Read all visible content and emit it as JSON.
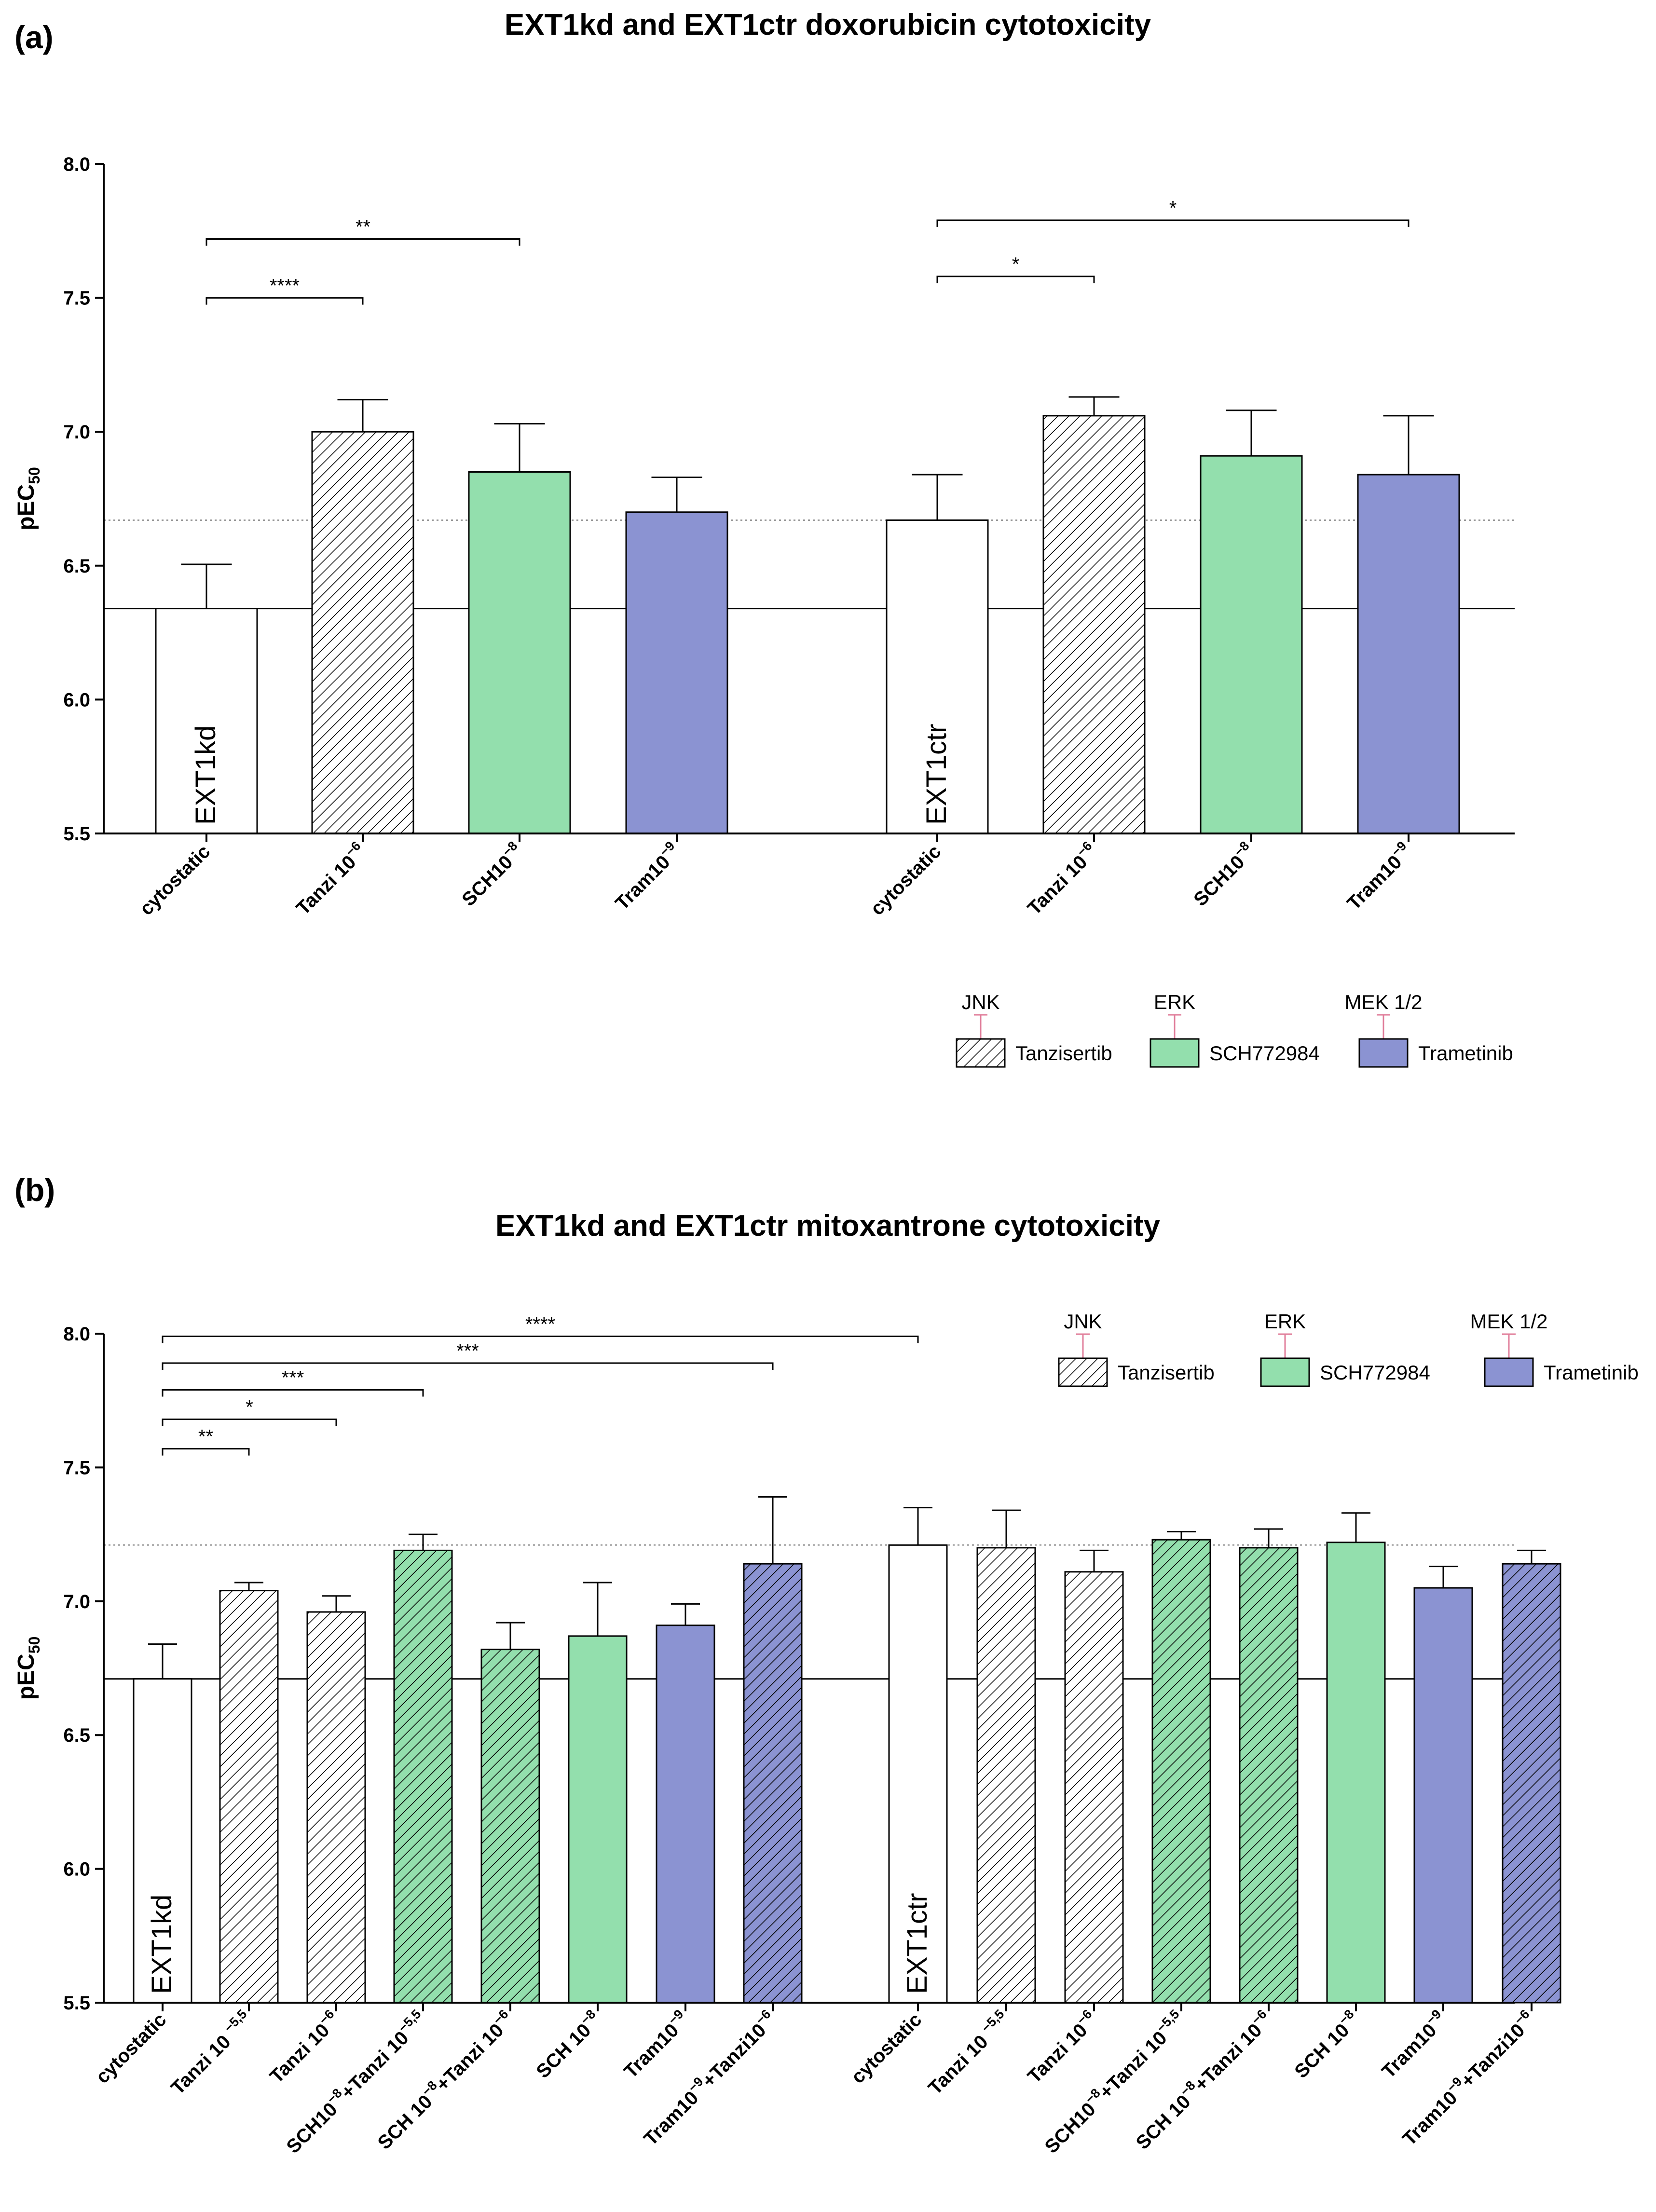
{
  "colors": {
    "white": "#ffffff",
    "green": "#93dfad",
    "blue": "#8b93d2",
    "errorbar_legend": "#e07d9a",
    "axis": "#000000"
  },
  "chart_data": [
    {
      "panel": "(a)",
      "type": "bar",
      "title": "EXT1kd and EXT1ctr doxorubicin cytotoxicity",
      "ylabel": "pEC",
      "ylabel_sub": "50",
      "ylim": [
        5.5,
        8.0
      ],
      "yticks": [
        "5.5",
        "6.0",
        "6.5",
        "7.0",
        "7.5",
        "8.0"
      ],
      "reference_lines": [
        {
          "value": 6.34,
          "style": "solid"
        },
        {
          "value": 6.67,
          "style": "dotted"
        }
      ],
      "groups": [
        "EXT1kd",
        "EXT1ctr"
      ],
      "bars": [
        {
          "group": 0,
          "label": "cytostatic",
          "sup": "",
          "value": 6.34,
          "err": 0.165,
          "fill": "white",
          "hatch": false,
          "inlabel": "EXT1kd"
        },
        {
          "group": 0,
          "label": "Tanzi 10",
          "sup": "−6",
          "value": 7.0,
          "err": 0.12,
          "fill": "white",
          "hatch": true
        },
        {
          "group": 0,
          "label": "SCH10",
          "sup": "−8",
          "value": 6.85,
          "err": 0.18,
          "fill": "green",
          "hatch": false
        },
        {
          "group": 0,
          "label": "Tram10",
          "sup": "−9",
          "value": 6.7,
          "err": 0.13,
          "fill": "blue",
          "hatch": false
        },
        {
          "group": 1,
          "label": "cytostatic",
          "sup": "",
          "value": 6.67,
          "err": 0.17,
          "fill": "white",
          "hatch": false,
          "inlabel": "EXT1ctr"
        },
        {
          "group": 1,
          "label": "Tanzi 10",
          "sup": "−6",
          "value": 7.06,
          "err": 0.07,
          "fill": "white",
          "hatch": true
        },
        {
          "group": 1,
          "label": "SCH10",
          "sup": "−8",
          "value": 6.91,
          "err": 0.17,
          "fill": "green",
          "hatch": false
        },
        {
          "group": 1,
          "label": "Tram10",
          "sup": "−9",
          "value": 6.84,
          "err": 0.22,
          "fill": "blue",
          "hatch": false
        }
      ],
      "significance": [
        {
          "from": 0,
          "to": 1,
          "y": 7.5,
          "label": "****"
        },
        {
          "from": 0,
          "to": 2,
          "y": 7.72,
          "label": "**"
        },
        {
          "from": 4,
          "to": 5,
          "y": 7.58,
          "label": "*"
        },
        {
          "from": 4,
          "to": 7,
          "y": 7.79,
          "label": "*"
        }
      ],
      "legend": [
        {
          "header": "JNK",
          "name": "Tanzisertib",
          "fill": "white",
          "hatch": true
        },
        {
          "header": "ERK",
          "name": "SCH772984",
          "fill": "green",
          "hatch": false
        },
        {
          "header": "MEK 1/2",
          "name": "Trametinib",
          "fill": "blue",
          "hatch": false
        }
      ]
    },
    {
      "panel": "(b)",
      "type": "bar",
      "title": "EXT1kd and EXT1ctr mitoxantrone cytotoxicity",
      "ylabel": "pEC",
      "ylabel_sub": "50",
      "ylim": [
        5.5,
        8.0
      ],
      "yticks": [
        "5.5",
        "6.0",
        "6.5",
        "7.0",
        "7.5",
        "8.0"
      ],
      "reference_lines": [
        {
          "value": 6.71,
          "style": "solid"
        },
        {
          "value": 7.21,
          "style": "dotted"
        }
      ],
      "groups": [
        "EXT1kd",
        "EXT1ctr"
      ],
      "bars": [
        {
          "group": 0,
          "label": "cytostatic",
          "parts": [
            {
              "t": "cytostatic"
            }
          ],
          "value": 6.71,
          "err": 0.13,
          "fill": "white",
          "hatch": false,
          "inlabel": "EXT1kd"
        },
        {
          "group": 0,
          "label": "Tanzi 10 −5,5",
          "parts": [
            {
              "t": "Tanzi 10 "
            },
            {
              "s": "−5,5"
            }
          ],
          "value": 7.04,
          "err": 0.03,
          "fill": "white",
          "hatch": true
        },
        {
          "group": 0,
          "label": "Tanzi 10 −6",
          "parts": [
            {
              "t": "Tanzi 10"
            },
            {
              "s": "−6"
            }
          ],
          "value": 6.96,
          "err": 0.06,
          "fill": "white",
          "hatch": true
        },
        {
          "group": 0,
          "label": "SCH10 −8 +Tanzi 10 −5,5",
          "parts": [
            {
              "t": "SCH10"
            },
            {
              "s": "−8"
            },
            {
              "t": "+Tanzi 10"
            },
            {
              "s": "−5,5"
            }
          ],
          "value": 7.19,
          "err": 0.06,
          "fill": "green",
          "hatch": true
        },
        {
          "group": 0,
          "label": "SCH 10 −8 +Tanzi 10 −6",
          "parts": [
            {
              "t": "SCH 10"
            },
            {
              "s": "−8"
            },
            {
              "t": "+Tanzi 10"
            },
            {
              "s": "−6"
            }
          ],
          "value": 6.82,
          "err": 0.1,
          "fill": "green",
          "hatch": true
        },
        {
          "group": 0,
          "label": "SCH 10 −8",
          "parts": [
            {
              "t": "SCH 10"
            },
            {
              "s": "−8"
            }
          ],
          "value": 6.87,
          "err": 0.2,
          "fill": "green",
          "hatch": false
        },
        {
          "group": 0,
          "label": "Tram10 −9",
          "parts": [
            {
              "t": "Tram10"
            },
            {
              "s": "−9"
            }
          ],
          "value": 6.91,
          "err": 0.08,
          "fill": "blue",
          "hatch": false
        },
        {
          "group": 0,
          "label": "Tram10 −9 +Tanzi10 −6",
          "parts": [
            {
              "t": "Tram10"
            },
            {
              "s": "−9"
            },
            {
              "t": "+Tanzi10"
            },
            {
              "s": "−6"
            }
          ],
          "value": 7.14,
          "err": 0.25,
          "fill": "blue",
          "hatch": true
        },
        {
          "group": 1,
          "label": "cytostatic",
          "parts": [
            {
              "t": "cytostatic"
            }
          ],
          "value": 7.21,
          "err": 0.14,
          "fill": "white",
          "hatch": false,
          "inlabel": "EXT1ctr"
        },
        {
          "group": 1,
          "label": "Tanzi 10 −5,5",
          "parts": [
            {
              "t": "Tanzi 10 "
            },
            {
              "s": "−5,5"
            }
          ],
          "value": 7.2,
          "err": 0.14,
          "fill": "white",
          "hatch": true
        },
        {
          "group": 1,
          "label": "Tanzi 10 −6",
          "parts": [
            {
              "t": "Tanzi 10"
            },
            {
              "s": "−6"
            }
          ],
          "value": 7.11,
          "err": 0.08,
          "fill": "white",
          "hatch": true
        },
        {
          "group": 1,
          "label": "SCH10 −8 +Tanzi 10 −5,5",
          "parts": [
            {
              "t": "SCH10"
            },
            {
              "s": "−8"
            },
            {
              "t": "+Tanzi 10"
            },
            {
              "s": "−5,5"
            }
          ],
          "value": 7.23,
          "err": 0.03,
          "fill": "green",
          "hatch": true
        },
        {
          "group": 1,
          "label": "SCH 10 −8 +Tanzi 10 −6",
          "parts": [
            {
              "t": "SCH 10"
            },
            {
              "s": "−8"
            },
            {
              "t": "+Tanzi 10"
            },
            {
              "s": "−6"
            }
          ],
          "value": 7.2,
          "err": 0.07,
          "fill": "green",
          "hatch": true
        },
        {
          "group": 1,
          "label": "SCH 10 −8",
          "parts": [
            {
              "t": "SCH 10"
            },
            {
              "s": "−8"
            }
          ],
          "value": 7.22,
          "err": 0.11,
          "fill": "green",
          "hatch": false
        },
        {
          "group": 1,
          "label": "Tram10 −9",
          "parts": [
            {
              "t": "Tram10"
            },
            {
              "s": "−9"
            }
          ],
          "value": 7.05,
          "err": 0.08,
          "fill": "blue",
          "hatch": false
        },
        {
          "group": 1,
          "label": "Tram10 −9 +Tanzi10 −6",
          "parts": [
            {
              "t": "Tram10"
            },
            {
              "s": "−9"
            },
            {
              "t": "+Tanzi10"
            },
            {
              "s": "−6"
            }
          ],
          "value": 7.14,
          "err": 0.05,
          "fill": "blue",
          "hatch": true
        }
      ],
      "significance": [
        {
          "from": 0,
          "to": 1,
          "y": 7.57,
          "label": "**"
        },
        {
          "from": 0,
          "to": 2,
          "y": 7.68,
          "label": "*"
        },
        {
          "from": 0,
          "to": 3,
          "y": 7.79,
          "label": "***"
        },
        {
          "from": 0,
          "to": 7,
          "y": 7.89,
          "label": "***"
        },
        {
          "from": 0,
          "to": 8,
          "y": 7.99,
          "label": "****"
        }
      ],
      "legend": [
        {
          "header": "JNK",
          "name": "Tanzisertib",
          "fill": "white",
          "hatch": true
        },
        {
          "header": "ERK",
          "name": "SCH772984",
          "fill": "green",
          "hatch": false
        },
        {
          "header": "MEK 1/2",
          "name": "Trametinib",
          "fill": "blue",
          "hatch": false
        }
      ]
    }
  ]
}
